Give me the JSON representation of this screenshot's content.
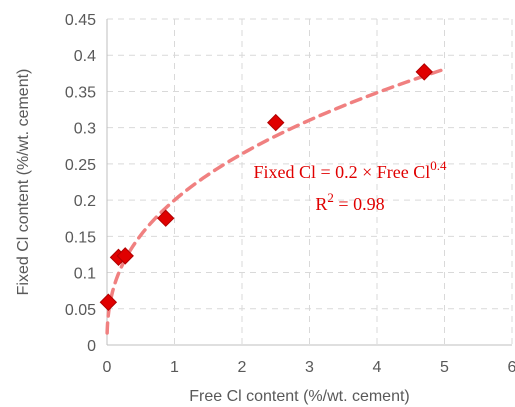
{
  "chart_data": {
    "type": "scatter",
    "xlabel": "Free Cl content (%/wt. cement)",
    "ylabel": "Fixed Cl content (%/wt. cement)",
    "xlim": [
      0,
      6
    ],
    "ylim": [
      0,
      0.45
    ],
    "x_ticks": [
      "0",
      "1",
      "2",
      "3",
      "4",
      "5",
      "6"
    ],
    "y_ticks": [
      "0",
      "0.05",
      "0.1",
      "0.15",
      "0.2",
      "0.25",
      "0.3",
      "0.35",
      "0.4",
      "0.45"
    ],
    "grid": "dashed",
    "series": [
      {
        "type": "scatter",
        "marker": "diamond",
        "color": "#e00000",
        "x": [
          0.02,
          0.17,
          0.27,
          0.87,
          2.5,
          4.7
        ],
        "y": [
          0.059,
          0.121,
          0.123,
          0.175,
          0.307,
          0.377
        ]
      }
    ],
    "fit": {
      "type": "power",
      "coefficient": 0.2,
      "exponent": 0.4,
      "x_range": [
        0.002,
        5.0
      ],
      "color": "#f08080",
      "style": "dashed"
    },
    "annotations": {
      "equation_prefix": "Fixed Cl = 0.2 × Free Cl",
      "equation_superscript": "0.4",
      "r2_prefix": "R",
      "r2_superscript": "2",
      "r2_suffix": " = 0.98"
    }
  }
}
